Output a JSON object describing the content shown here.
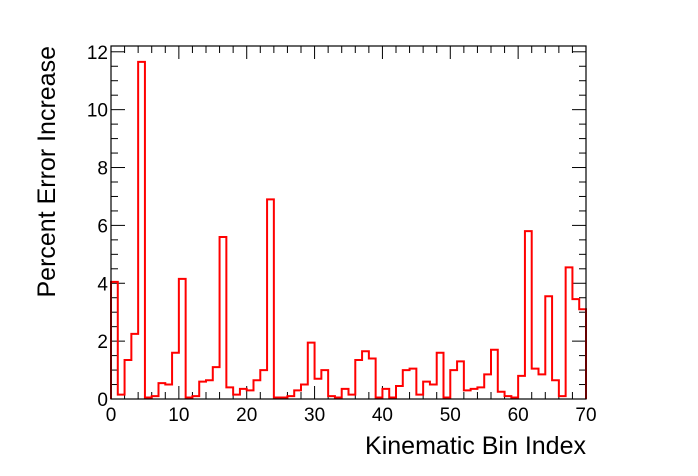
{
  "chart_data": {
    "type": "step-histogram",
    "xlabel": "Kinematic Bin Index",
    "ylabel": "Percent Error Increase",
    "xlim": [
      0,
      70
    ],
    "ylim": [
      0,
      12.2
    ],
    "x_ticks": [
      0,
      10,
      20,
      30,
      40,
      50,
      60,
      70
    ],
    "y_ticks": [
      0,
      2,
      4,
      6,
      8,
      10,
      12
    ],
    "grid": false,
    "line_color": "#ff0000",
    "bin_width": 1,
    "values": [
      4.05,
      0.15,
      1.35,
      2.25,
      11.65,
      0.05,
      0.1,
      0.55,
      0.5,
      1.6,
      4.15,
      0.05,
      0.1,
      0.6,
      0.65,
      1.1,
      5.6,
      0.4,
      0.15,
      0.35,
      0.3,
      0.65,
      1.0,
      6.9,
      0.05,
      0.05,
      0.1,
      0.3,
      0.5,
      1.95,
      0.7,
      1.0,
      0.1,
      0.05,
      0.35,
      0.15,
      1.35,
      1.65,
      1.4,
      0.05,
      0.35,
      0.05,
      0.45,
      1.0,
      1.05,
      0.15,
      0.6,
      0.5,
      1.6,
      0.05,
      1.0,
      1.3,
      0.3,
      0.35,
      0.4,
      0.85,
      1.7,
      0.25,
      0.1,
      0.05,
      0.8,
      5.8,
      1.05,
      0.85,
      3.55,
      0.65,
      0.1,
      4.55,
      3.45,
      3.1
    ]
  }
}
